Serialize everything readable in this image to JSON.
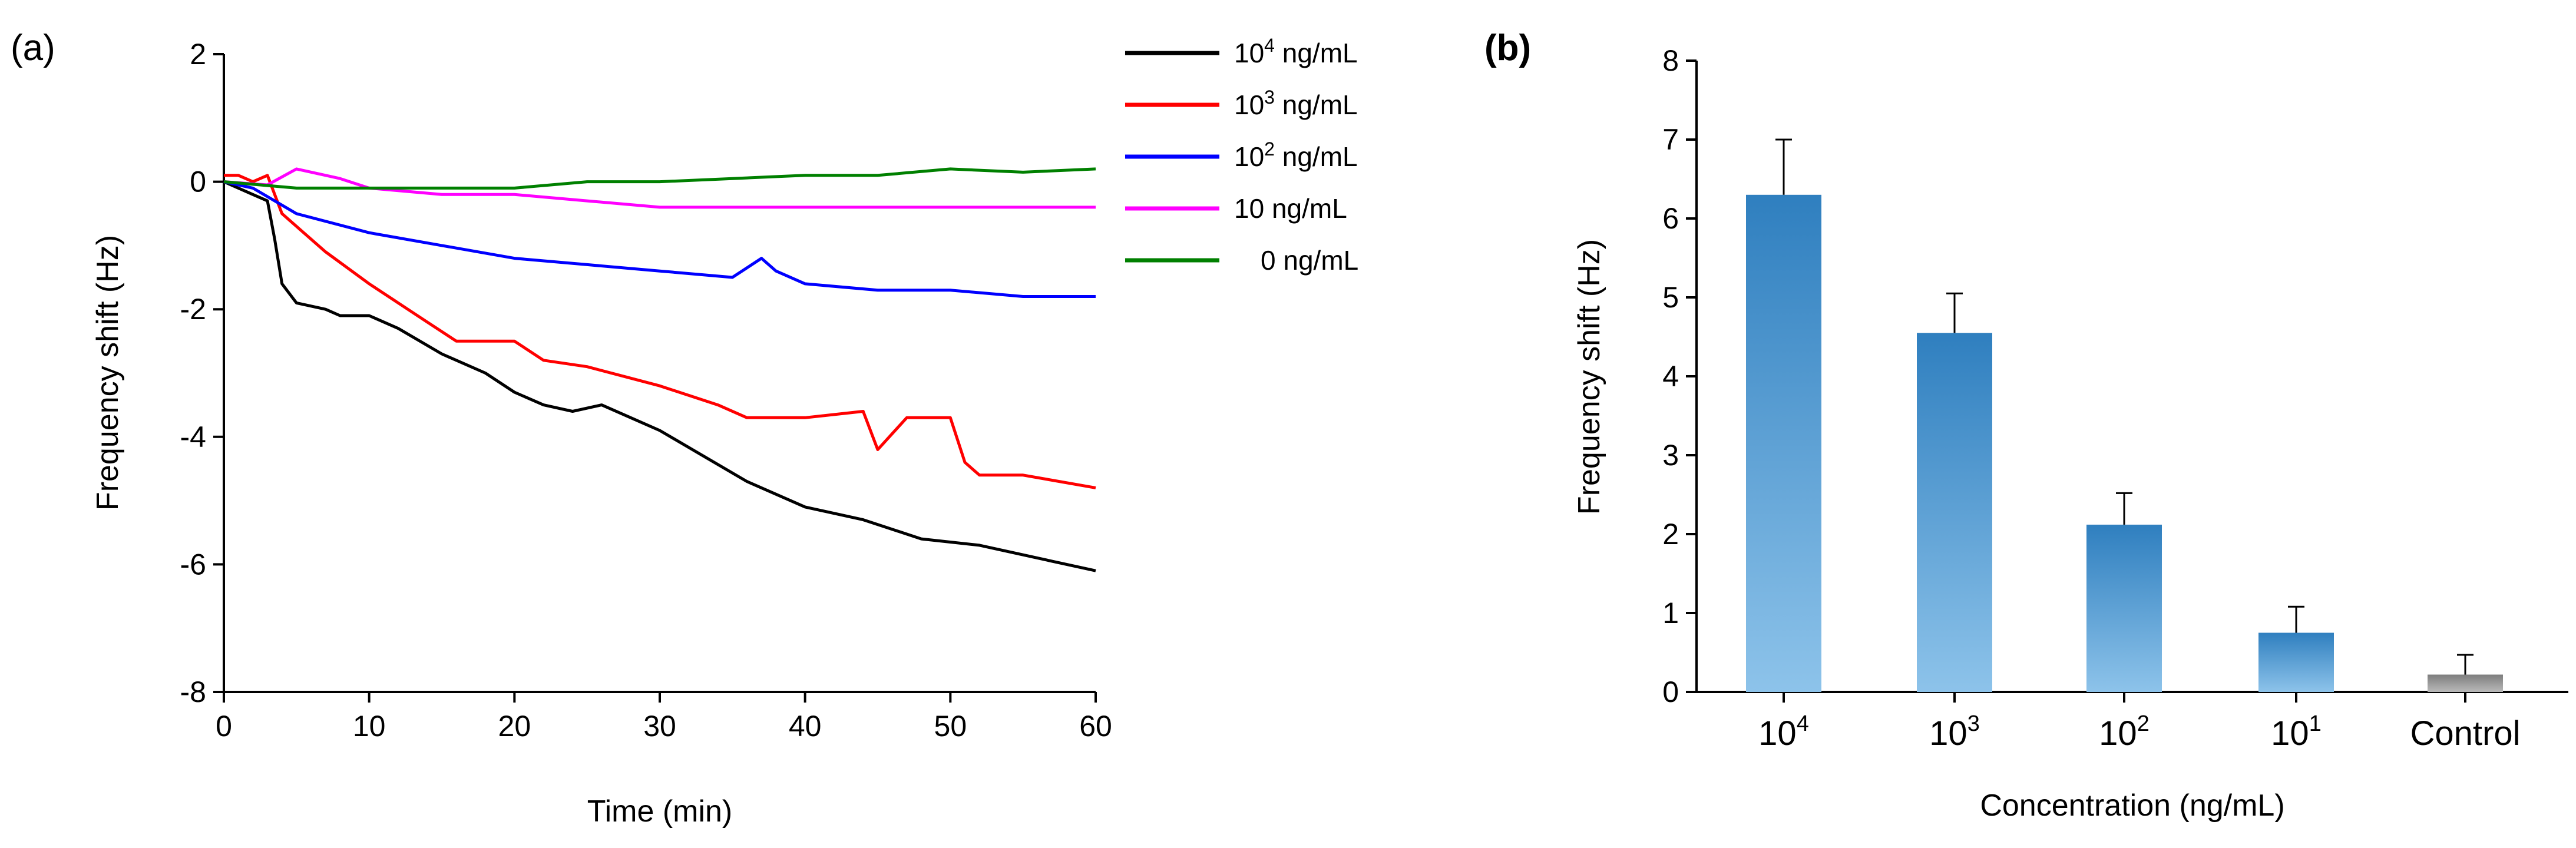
{
  "chart_data": [
    {
      "panel_label": "(a)",
      "type": "line",
      "xlabel": "Time (min)",
      "ylabel": "Frequency shift (Hz)",
      "xlim": [
        0,
        60
      ],
      "ylim": [
        -8,
        2
      ],
      "x_ticks": [
        "0",
        "10",
        "20",
        "30",
        "40",
        "50",
        "60"
      ],
      "y_ticks": [
        "2",
        "0",
        "-2",
        "-4",
        "-6",
        "-8"
      ],
      "legend_position": "top-right",
      "series": [
        {
          "name_base": "10",
          "name_exp": "4",
          "name_unit": "ng/mL",
          "color": "#000000",
          "x": [
            0,
            2,
            3,
            3.5,
            4,
            5,
            7,
            8,
            10,
            12,
            15,
            18,
            20,
            22,
            24,
            26,
            28,
            30,
            33,
            36,
            40,
            44,
            48,
            52,
            56,
            60
          ],
          "y": [
            0,
            -0.2,
            -0.3,
            -0.9,
            -1.6,
            -1.9,
            -2.0,
            -2.1,
            -2.1,
            -2.3,
            -2.7,
            -3.0,
            -3.3,
            -3.5,
            -3.6,
            -3.5,
            -3.7,
            -3.9,
            -4.3,
            -4.7,
            -5.1,
            -5.3,
            -5.6,
            -5.7,
            -5.9,
            -6.1
          ]
        },
        {
          "name_base": "10",
          "name_exp": "3",
          "name_unit": "ng/mL",
          "color": "#ff0000",
          "x": [
            0,
            1,
            2,
            3,
            4,
            5,
            7,
            10,
            12,
            14,
            16,
            20,
            22,
            25,
            30,
            34,
            36,
            40,
            44,
            45,
            47,
            50,
            51,
            52,
            55,
            60
          ],
          "y": [
            0.1,
            0.1,
            0.0,
            0.1,
            -0.5,
            -0.7,
            -1.1,
            -1.6,
            -1.9,
            -2.2,
            -2.5,
            -2.5,
            -2.8,
            -2.9,
            -3.2,
            -3.5,
            -3.7,
            -3.7,
            -3.6,
            -4.2,
            -3.7,
            -3.7,
            -4.4,
            -4.6,
            -4.6,
            -4.8
          ]
        },
        {
          "name_base": "10",
          "name_exp": "2",
          "name_unit": "ng/mL",
          "color": "#0000ff",
          "x": [
            0,
            2,
            5,
            10,
            15,
            20,
            25,
            30,
            35,
            37,
            38,
            40,
            45,
            50,
            55,
            60
          ],
          "y": [
            0,
            -0.1,
            -0.5,
            -0.8,
            -1.0,
            -1.2,
            -1.3,
            -1.4,
            -1.5,
            -1.2,
            -1.4,
            -1.6,
            -1.7,
            -1.7,
            -1.8,
            -1.8
          ]
        },
        {
          "name_base": "10",
          "name_exp": "",
          "name_unit": "ng/mL",
          "color": "#ff00ff",
          "x": [
            0,
            3,
            5,
            8,
            10,
            15,
            20,
            25,
            30,
            35,
            40,
            45,
            50,
            55,
            60
          ],
          "y": [
            0,
            -0.05,
            0.2,
            0.05,
            -0.1,
            -0.2,
            -0.2,
            -0.3,
            -0.4,
            -0.4,
            -0.4,
            -0.4,
            -0.4,
            -0.4,
            -0.4
          ]
        },
        {
          "name_base": "0",
          "name_exp": "",
          "name_unit": "ng/mL",
          "color": "#008000",
          "x": [
            0,
            5,
            10,
            15,
            20,
            25,
            30,
            35,
            40,
            45,
            50,
            55,
            60
          ],
          "y": [
            0,
            -0.1,
            -0.1,
            -0.1,
            -0.1,
            0.0,
            0.0,
            0.05,
            0.1,
            0.1,
            0.2,
            0.15,
            0.2
          ]
        }
      ]
    },
    {
      "panel_label": "(b)",
      "type": "bar",
      "xlabel": "Concentration (ng/mL)",
      "ylabel": "Frequency shift (Hz)",
      "ylim": [
        0,
        8
      ],
      "y_ticks": [
        "0",
        "1",
        "2",
        "3",
        "4",
        "5",
        "6",
        "7",
        "8"
      ],
      "categories": [
        {
          "base": "10",
          "exp": "4"
        },
        {
          "base": "10",
          "exp": "3"
        },
        {
          "base": "10",
          "exp": "2"
        },
        {
          "base": "10",
          "exp": "1"
        },
        {
          "base": "Control",
          "exp": ""
        }
      ],
      "values": [
        6.3,
        4.55,
        2.12,
        0.75,
        0.22
      ],
      "errors": [
        0.7,
        0.5,
        0.4,
        0.33,
        0.25
      ],
      "colors": {
        "bar_top": "#2f7fbf",
        "bar_bottom": "#8dc3ea",
        "control_top": "#7d7d7d",
        "control_bottom": "#b9b9b9"
      }
    }
  ]
}
